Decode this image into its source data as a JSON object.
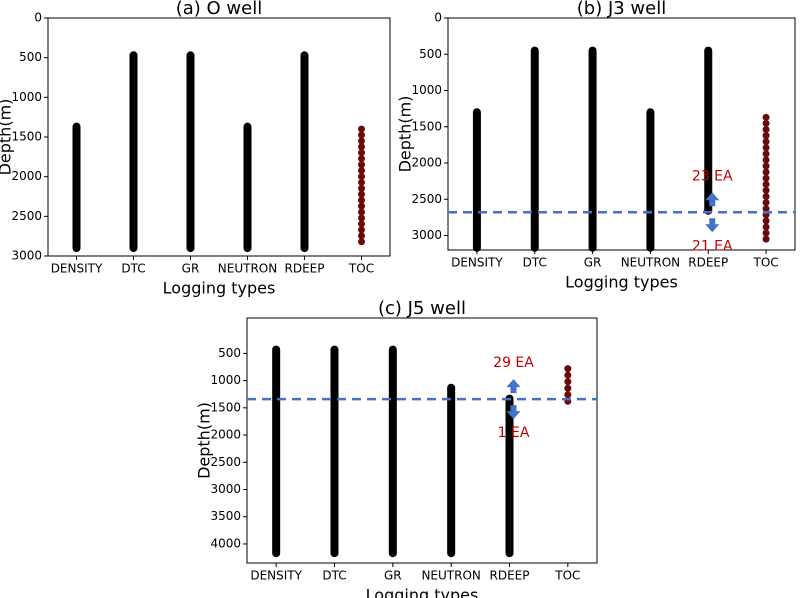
{
  "chart_data": [
    {
      "type": "range",
      "title": "(a) O well",
      "xlabel": "Logging types",
      "ylabel": "Depth(m)",
      "categories": [
        "DENSITY",
        "DTC",
        "GR",
        "NEUTRON",
        "RDEEP",
        "TOC"
      ],
      "top": [
        1370,
        470,
        470,
        1370,
        470,
        1400
      ],
      "bottom": [
        2900,
        2900,
        2900,
        2900,
        2900,
        2820
      ],
      "colors": [
        "#000000",
        "#000000",
        "#000000",
        "#000000",
        "#000000",
        "#6b0a0a"
      ],
      "styles": [
        "bar",
        "bar",
        "bar",
        "bar",
        "bar",
        "dots"
      ],
      "ylim": [
        0,
        3000
      ],
      "yticks": [
        0,
        500,
        1000,
        1500,
        2000,
        2500,
        3000
      ],
      "inverted": true
    },
    {
      "type": "range",
      "title": "(b) J3 well",
      "xlabel": "Logging types",
      "ylabel": "Depth(m)",
      "categories": [
        "DENSITY",
        "DTC",
        "GR",
        "NEUTRON",
        "RDEEP",
        "TOC"
      ],
      "top": [
        1300,
        450,
        450,
        1300,
        450,
        1370
      ],
      "bottom": [
        3170,
        3170,
        3170,
        3170,
        2660,
        3050
      ],
      "colors": [
        "#000000",
        "#000000",
        "#000000",
        "#000000",
        "#000000",
        "#6b0a0a"
      ],
      "styles": [
        "bar",
        "bar",
        "bar",
        "bar",
        "bar",
        "dots"
      ],
      "ylim": [
        0,
        3200
      ],
      "yticks": [
        0,
        500,
        1000,
        1500,
        2000,
        2500,
        3000
      ],
      "inverted": true,
      "divider": {
        "value": 2680,
        "color": "#4472c4",
        "above_label": "23 EA",
        "below_label": "21 EA"
      }
    },
    {
      "type": "range",
      "title": "(c) J5 well",
      "xlabel": "Logging types",
      "ylabel": "Depth(m)",
      "categories": [
        "DENSITY",
        "DTC",
        "GR",
        "NEUTRON",
        "RDEEP",
        "TOC"
      ],
      "top": [
        430,
        430,
        430,
        1130,
        1330,
        780
      ],
      "bottom": [
        4170,
        4170,
        4170,
        4170,
        4170,
        1380
      ],
      "colors": [
        "#000000",
        "#000000",
        "#000000",
        "#000000",
        "#000000",
        "#6b0a0a"
      ],
      "styles": [
        "bar",
        "bar",
        "bar",
        "bar",
        "bar",
        "dots"
      ],
      "ylim": [
        -150,
        4350
      ],
      "yticks": [
        500,
        1000,
        1500,
        2000,
        2500,
        3000,
        3500,
        4000
      ],
      "inverted": true,
      "divider": {
        "value": 1340,
        "color": "#4472c4",
        "above_label": "29 EA",
        "below_label": "1 EA"
      }
    }
  ]
}
